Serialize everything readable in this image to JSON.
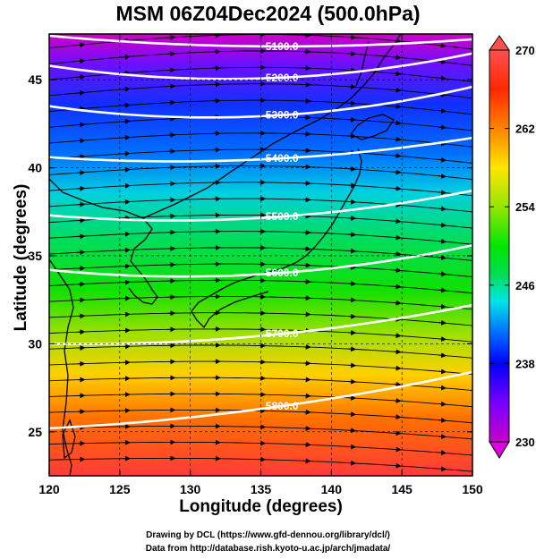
{
  "title": "MSM 06Z04Dec2024 (500.0hPa)",
  "xlabel": "Longitude (degrees)",
  "ylabel": "Latitude  (degrees)",
  "credits": [
    "Drawing by DCL (https://www.gfd-dennou.org/library/dcl/)",
    "Data from http://database.rish.kyoto-u.ac.jp/arch/jmadata/"
  ],
  "map": {
    "x_range": [
      120,
      150
    ],
    "y_range": [
      22.5,
      47.6
    ],
    "x_ticks": [
      "120",
      "125",
      "130",
      "135",
      "140",
      "145",
      "150"
    ],
    "y_ticks": [
      "25",
      "30",
      "35",
      "40",
      "45"
    ],
    "gridlines": true
  },
  "colorbar": {
    "min": 230,
    "max": 270,
    "tick_labels": [
      "270",
      "262",
      "254",
      "246",
      "238",
      "230"
    ],
    "colors": [
      "#c800c8",
      "#7800ff",
      "#0000ff",
      "#0070ff",
      "#00e6e6",
      "#00dc50",
      "#00e600",
      "#96e600",
      "#ffe600",
      "#ff9600",
      "#ff2800",
      "#ff5050"
    ]
  },
  "contours": [
    {
      "label": "5100.0",
      "lat_start": 47.5,
      "lat_mid": 46.4,
      "lat_end": 47.3
    },
    {
      "label": "5200.0",
      "lat_start": 45.8,
      "lat_mid": 44.0,
      "lat_end": 46.5
    },
    {
      "label": "5300.0",
      "lat_start": 43.5,
      "lat_mid": 41.8,
      "lat_end": 44.6
    },
    {
      "label": "5400.0",
      "lat_start": 40.6,
      "lat_mid": 39.8,
      "lat_end": 41.7
    },
    {
      "label": "5500.0",
      "lat_start": 37.3,
      "lat_mid": 36.3,
      "lat_end": 38.7
    },
    {
      "label": "5600.0",
      "lat_start": 34.2,
      "lat_mid": 33.0,
      "lat_end": 35.6
    },
    {
      "label": "5700.0",
      "lat_start": 30.0,
      "lat_mid": 29.8,
      "lat_end": 32.2
    },
    {
      "label": "5800.0",
      "lat_start": 25.2,
      "lat_mid": 25.8,
      "lat_end": 28.4
    }
  ]
}
